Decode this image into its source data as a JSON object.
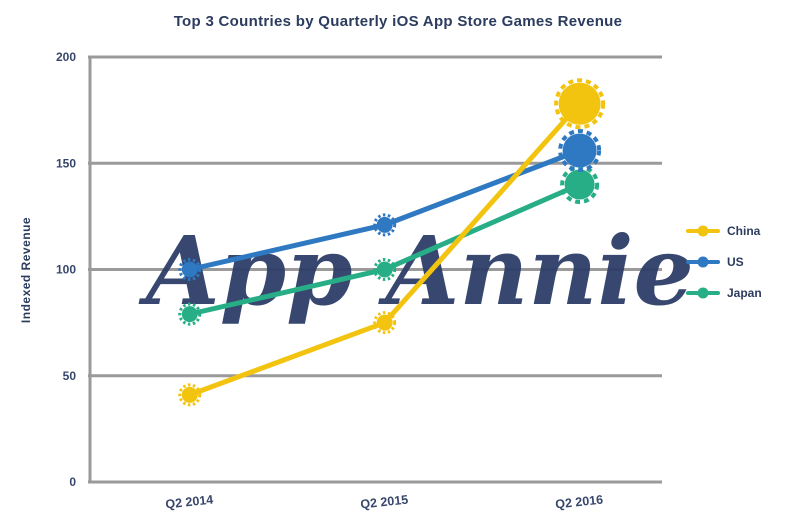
{
  "chart_data": {
    "type": "line",
    "title": "Top 3 Countries by Quarterly iOS App Store Games Revenue",
    "ylabel": "Indexed Revenue",
    "watermark": "App Annie",
    "x": [
      "Q2 2014",
      "Q2 2015",
      "Q2 2016"
    ],
    "yticks": [
      0,
      50,
      100,
      150,
      200
    ],
    "ylim": [
      0,
      200
    ],
    "grid": "horizontal",
    "legend_position": "right",
    "series": [
      {
        "name": "China",
        "color": "#F2C410",
        "values": [
          41,
          75,
          178
        ]
      },
      {
        "name": "US",
        "color": "#2E79C2",
        "values": [
          100,
          121,
          156
        ]
      },
      {
        "name": "Japan",
        "color": "#27AE87",
        "values": [
          79,
          100,
          140
        ]
      }
    ]
  }
}
